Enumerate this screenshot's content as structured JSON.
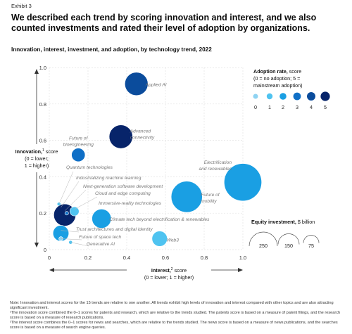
{
  "exhibit": "Exhibit 3",
  "title": "We described each trend by scoring innovation and interest, and we also counted investments and rated their level of adoption by organizations.",
  "subtitle": "Innovation, interest, investment, and adoption, by technology trend, 2022",
  "chart_data": {
    "type": "scatter",
    "x_axis": {
      "label_bold": "Interest,",
      "label_sup": "2",
      "label_rest": " score",
      "label_line2": "(0 = lower; 1 = higher)",
      "ticks": [
        "0",
        "0.2",
        "0.4",
        "0.6",
        "0.8",
        "1.0"
      ],
      "range": [
        0,
        1
      ]
    },
    "y_axis": {
      "label_bold": "Innovation,",
      "label_sup": "1",
      "label_rest": " score",
      "label_line2": "(0 = lower;",
      "label_line3": "1 = higher)",
      "ticks": [
        "0",
        "0.2",
        "0.4",
        "0.6",
        "0.8",
        "1.0"
      ],
      "range": [
        0,
        1
      ]
    },
    "adoption_legend": {
      "title": "Adoption rate,",
      "title_rest": " score",
      "line2": "(0 = no adoption; 5 =",
      "line3": "mainstream adoption)",
      "levels": [
        "0",
        "1",
        "2",
        "3",
        "4",
        "5"
      ],
      "colors": [
        "#8fd3f2",
        "#4fc3f0",
        "#1a9fe3",
        "#0f6fc6",
        "#0b4c9c",
        "#07246a"
      ]
    },
    "investment_legend": {
      "title": "Equity investment,",
      "title_rest": " $ billion",
      "values": [
        "250",
        "150",
        "75"
      ]
    },
    "points": [
      {
        "label": "Applied AI",
        "x": 0.45,
        "y": 0.91,
        "adoption": 4,
        "investment": 160
      },
      {
        "label": "Future of bioengineering",
        "x": 0.15,
        "y": 0.52,
        "adoption": 3,
        "investment": 55
      },
      {
        "label": "Advanced connectivity",
        "x": 0.37,
        "y": 0.62,
        "adoption": 5,
        "investment": 165
      },
      {
        "label": "Electrification and renewables",
        "x": 1.0,
        "y": 0.37,
        "adoption": 2,
        "investment": 420
      },
      {
        "label": "Future of mobility",
        "x": 0.71,
        "y": 0.29,
        "adoption": 2,
        "investment": 290
      },
      {
        "label": "Quantum technologies",
        "x": 0.05,
        "y": 0.25,
        "adoption": 1,
        "investment": 4
      },
      {
        "label": "Industrializing machine learning",
        "x": 0.06,
        "y": 0.22,
        "adoption": 4,
        "investment": 8
      },
      {
        "label": "Next-generation software development",
        "x": 0.08,
        "y": 0.19,
        "adoption": 5,
        "investment": 145
      },
      {
        "label": "Cloud and edge computing",
        "x": 0.09,
        "y": 0.2,
        "adoption": 3,
        "investment": 4
      },
      {
        "label": "Immersive-reality technologies",
        "x": 0.13,
        "y": 0.21,
        "adoption": 1,
        "investment": 25
      },
      {
        "label": "Climate tech beyond electrification & renewables",
        "x": 0.27,
        "y": 0.17,
        "adoption": 2,
        "investment": 110
      },
      {
        "label": "Trust architectures and digital identity",
        "x": 0.06,
        "y": 0.09,
        "adoption": 2,
        "investment": 75
      },
      {
        "label": "Future of space tech",
        "x": 0.06,
        "y": 0.06,
        "adoption": 0,
        "investment": 5
      },
      {
        "label": "Generative AI",
        "x": 0.11,
        "y": 0.04,
        "adoption": 1,
        "investment": 4
      },
      {
        "label": "Web3",
        "x": 0.57,
        "y": 0.06,
        "adoption": 1,
        "investment": 70
      }
    ]
  },
  "notes": {
    "line1": "Note: Innovation and interest scores for the 15 trends are relative to one another. All trends exhibit high levels of innovation and interest compared with other topics and are also attracting significant investment.",
    "line2": "¹The innovation score combined the 0–1 scores for patents and research, which are relative to the trends studied. The patents score is based on a measure of patent filings, and the research score is based on a measure of research publications.",
    "line3": "²The interest score combines the 0–1 scores for news and searches, which are relative to the trends studied. The news score is based on a measure of news publications, and the searches score is based on a measure of search engine queries."
  }
}
